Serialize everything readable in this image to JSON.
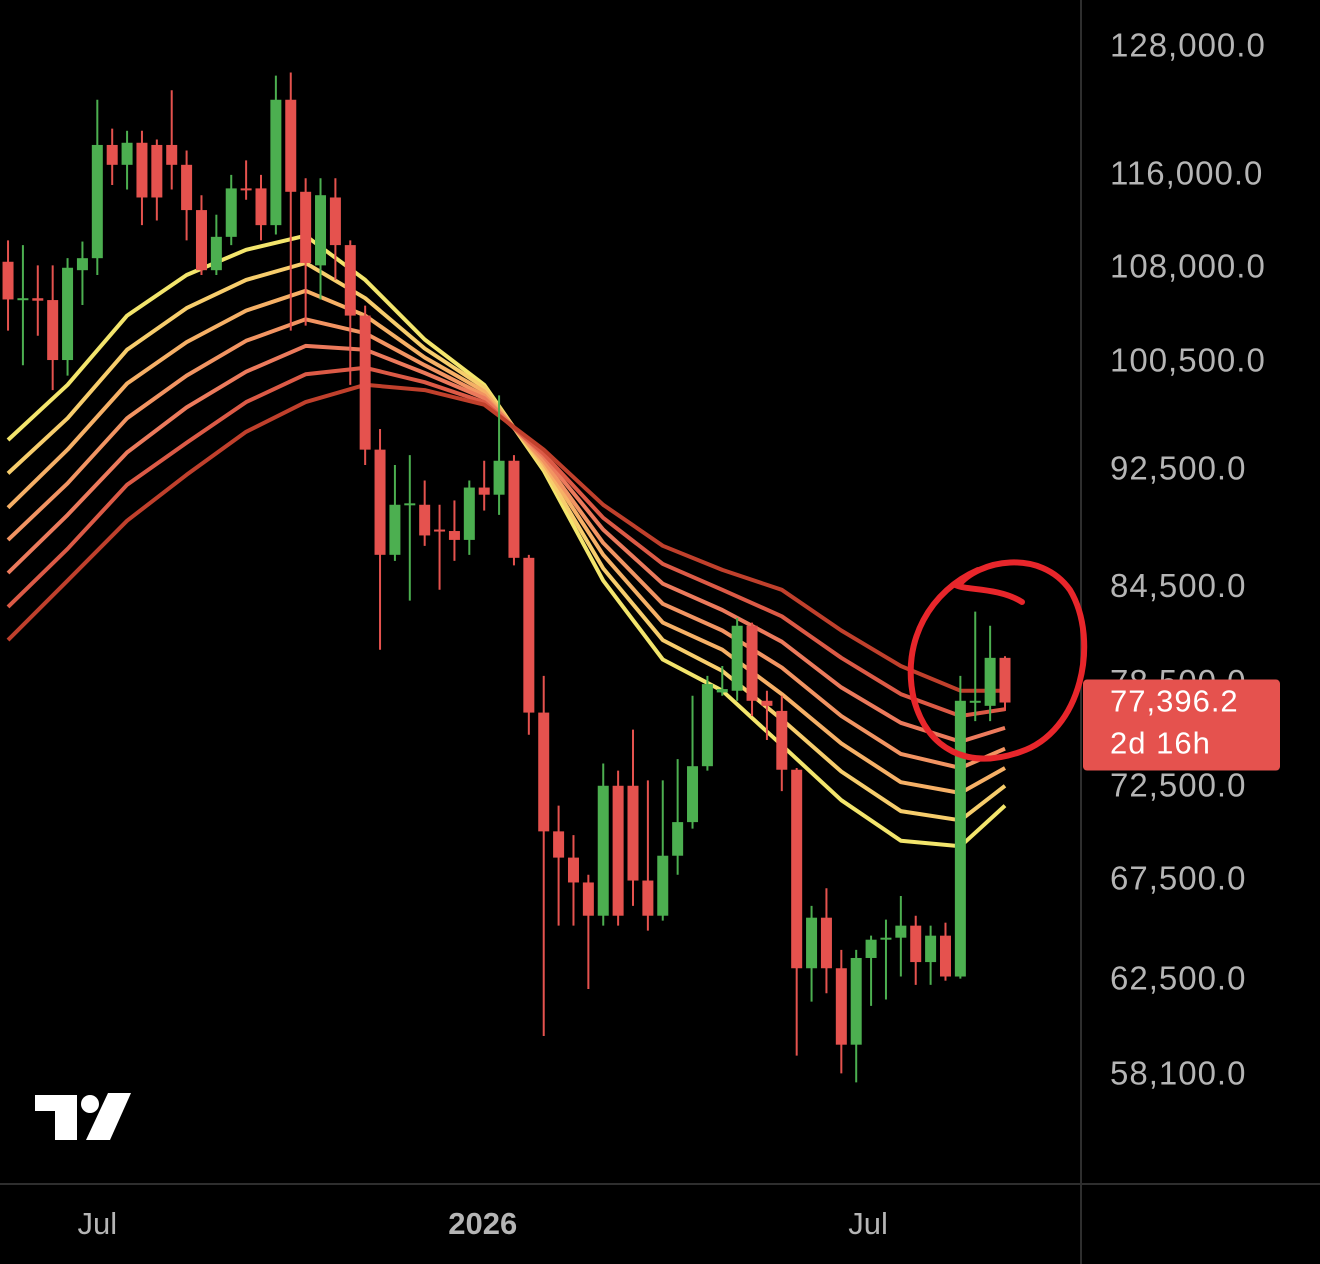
{
  "chart_data": {
    "type": "candlestick",
    "x": [
      0,
      1,
      2,
      3,
      4,
      5,
      6,
      7,
      8,
      9,
      10,
      11,
      12,
      13,
      14,
      15,
      16,
      17,
      18,
      19,
      20,
      21,
      22,
      23,
      24,
      25,
      26,
      27,
      28,
      29,
      30,
      31,
      32,
      33,
      34,
      35,
      36,
      37,
      38,
      39,
      40,
      41,
      42,
      43,
      44,
      45,
      46,
      47,
      48,
      49,
      50,
      51,
      52,
      53,
      54,
      55,
      56,
      57,
      58,
      59,
      60,
      61,
      62,
      63,
      64,
      65,
      66,
      67
    ],
    "open": [
      108600,
      105450,
      105600,
      105450,
      100700,
      107900,
      108900,
      118800,
      117000,
      119000,
      118800,
      118800,
      117000,
      113000,
      107900,
      110700,
      114900,
      114900,
      111700,
      123000,
      114600,
      108300,
      114100,
      110000,
      104200,
      94000,
      86700,
      90100,
      90100,
      88400,
      88300,
      87700,
      91300,
      90800,
      93200,
      86500,
      76800,
      70100,
      68700,
      67400,
      65700,
      72600,
      72600,
      67500,
      65700,
      68800,
      70600,
      73700,
      78000,
      78100,
      82100,
      77500,
      76900,
      73500,
      63100,
      65600,
      63100,
      59500,
      63600,
      64500,
      64600,
      65200,
      63400,
      64700,
      62700,
      77400,
      77200,
      80100
    ],
    "high": [
      110400,
      110000,
      108300,
      108300,
      108900,
      110300,
      123000,
      120300,
      120100,
      120100,
      119300,
      123900,
      118300,
      114300,
      112600,
      116100,
      117400,
      116100,
      125300,
      125600,
      115800,
      115800,
      115800,
      110400,
      105000,
      95500,
      92900,
      93600,
      91800,
      90100,
      90400,
      91800,
      93200,
      98000,
      93600,
      86700,
      79000,
      71500,
      69900,
      67800,
      73850,
      73450,
      75800,
      72900,
      72900,
      74100,
      77800,
      79000,
      79600,
      82600,
      82300,
      78100,
      77800,
      73600,
      66200,
      67100,
      64000,
      64000,
      64700,
      65500,
      66700,
      65700,
      65200,
      65350,
      79000,
      83000,
      82100,
      80200
    ],
    "low": [
      103000,
      100300,
      102600,
      98400,
      99500,
      105050,
      107500,
      115200,
      114800,
      111700,
      112100,
      114800,
      110400,
      107500,
      107500,
      110000,
      113900,
      110400,
      110900,
      103000,
      103400,
      105500,
      107100,
      98800,
      92900,
      80600,
      86300,
      83700,
      87300,
      84400,
      86300,
      86700,
      89700,
      89400,
      86000,
      75500,
      59900,
      65200,
      65200,
      62100,
      65200,
      65200,
      66200,
      64950,
      65450,
      67800,
      70250,
      73450,
      77800,
      77500,
      76600,
      75200,
      72300,
      59000,
      61500,
      61900,
      58200,
      57800,
      61300,
      61600,
      62700,
      62300,
      62300,
      62500,
      62600,
      76300,
      76300,
      76900
    ],
    "close": [
      105500,
      105600,
      105400,
      100700,
      108100,
      108900,
      118800,
      117000,
      119000,
      114100,
      114100,
      117000,
      113000,
      107900,
      110700,
      114900,
      114800,
      111700,
      123000,
      114600,
      108500,
      114300,
      110000,
      104200,
      94000,
      86700,
      90100,
      90200,
      88000,
      88300,
      87700,
      91300,
      90800,
      93200,
      86500,
      76800,
      70100,
      68700,
      67400,
      65700,
      72600,
      65700,
      67500,
      65700,
      68800,
      70600,
      73700,
      78500,
      78200,
      82100,
      77500,
      77200,
      73500,
      63100,
      65600,
      63100,
      59500,
      63600,
      64500,
      64600,
      65200,
      63400,
      64700,
      62700,
      77500,
      77500,
      80100,
      77396.2
    ],
    "up_color": "#4caf50",
    "down_color": "#e5524e",
    "ribbon_x": [
      0,
      4,
      8,
      12,
      16,
      20,
      24,
      28,
      32,
      36,
      40,
      44,
      48,
      52,
      56,
      60,
      64,
      67
    ],
    "ribbons": [
      {
        "color": "#f3e56c",
        "values": [
          94700,
          98800,
          104200,
          107500,
          109600,
          110800,
          107100,
          102300,
          98800,
          92500,
          85000,
          80000,
          78100,
          74900,
          71800,
          69600,
          69300,
          71500
        ]
      },
      {
        "color": "#f7cd6c",
        "values": [
          92300,
          96300,
          101500,
          104800,
          107100,
          108500,
          105600,
          101600,
          98600,
          92700,
          85800,
          81200,
          79300,
          76400,
          73400,
          71200,
          70700,
          72600
        ]
      },
      {
        "color": "#f6b066",
        "values": [
          89900,
          94000,
          98900,
          102100,
          104600,
          106200,
          104200,
          100900,
          98300,
          93000,
          86700,
          82300,
          80600,
          77900,
          75000,
          72800,
          72200,
          73600
        ]
      },
      {
        "color": "#f29462",
        "values": [
          87700,
          91600,
          96300,
          99500,
          102200,
          103900,
          102800,
          100300,
          98000,
          93200,
          87500,
          83500,
          81800,
          79500,
          76600,
          74400,
          73600,
          74700
        ]
      },
      {
        "color": "#ec7a5c",
        "values": [
          85500,
          89400,
          93800,
          97100,
          99800,
          101800,
          101500,
          99700,
          97800,
          93500,
          88400,
          84800,
          83100,
          81100,
          78300,
          76200,
          75100,
          75900
        ]
      },
      {
        "color": "#dc5a46",
        "values": [
          83300,
          87100,
          91500,
          94500,
          97500,
          99600,
          100100,
          99000,
          97500,
          93700,
          89200,
          86100,
          84400,
          82700,
          80100,
          77900,
          76600,
          77000
        ]
      },
      {
        "color": "#c0402c",
        "values": [
          81200,
          85000,
          89000,
          92200,
          95300,
          97500,
          98800,
          98400,
          97300,
          94000,
          90100,
          87300,
          85700,
          84400,
          81800,
          79600,
          78100,
          78100
        ]
      }
    ],
    "log_scale": true,
    "ylim": [
      53500,
      132800
    ],
    "yticks": [
      {
        "value": 128000,
        "label": "128,000.0"
      },
      {
        "value": 116000,
        "label": "116,000.0"
      },
      {
        "value": 108000,
        "label": "108,000.0"
      },
      {
        "value": 100500,
        "label": "100,500.0"
      },
      {
        "value": 92500,
        "label": "92,500.0"
      },
      {
        "value": 84500,
        "label": "84,500.0"
      },
      {
        "value": 78500,
        "label": "78,500.0"
      },
      {
        "value": 72500,
        "label": "72,500.0"
      },
      {
        "value": 67500,
        "label": "67,500.0"
      },
      {
        "value": 62500,
        "label": "62,500.0"
      },
      {
        "value": 58100,
        "label": "58,100.0"
      }
    ],
    "xlim": [
      -0.54,
      72.04
    ],
    "xticks": [
      {
        "value": 6,
        "label": "Jul"
      },
      {
        "value": 31.9,
        "label": "2026"
      },
      {
        "value": 57.8,
        "label": "Jul"
      }
    ],
    "last_price_label": "77,396.2",
    "countdown": "2d 16h"
  }
}
